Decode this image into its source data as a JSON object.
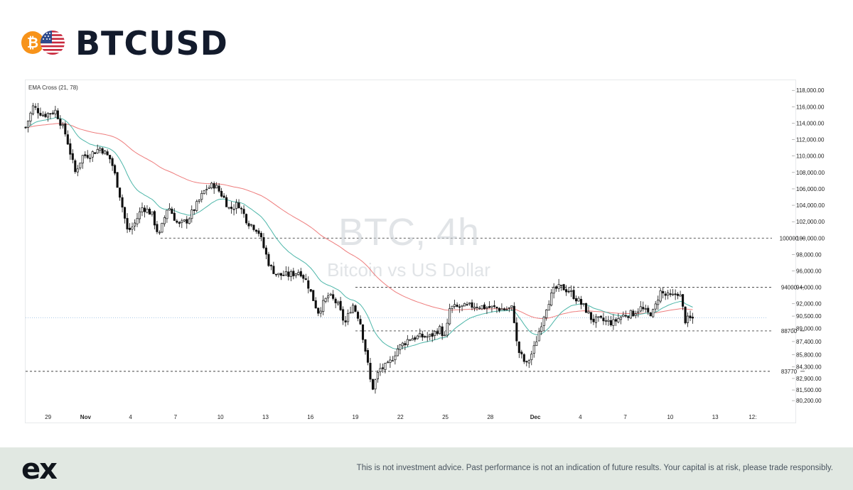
{
  "header": {
    "btc_symbol": "₿",
    "title": "BTCUSD"
  },
  "colors": {
    "bull": "#ffffff",
    "bear": "#0f0f0f",
    "wick": "#111111",
    "ema_fast": "#4db6a9",
    "ema_slow": "#ee7d7d",
    "current_price_line": "#8fb8e0",
    "btc_coin": "#f7931a",
    "footer_bg": "#e1e8e2"
  },
  "chart_data": {
    "type": "candlestick",
    "indicator_label": "EMA Cross (21, 78)",
    "watermark_title": "BTC, 4h",
    "watermark_subtitle": "Bitcoin vs US Dollar",
    "ylim": [
      79000,
      118800
    ],
    "y_ticks": [
      "118,000.00",
      "116,000.00",
      "114,000.00",
      "112,000.00",
      "110,000.00",
      "108,000.00",
      "106,000.00",
      "104,000.00",
      "102,000.00",
      "100,000.00",
      "98,000.00",
      "96,000.00",
      "94,000.00",
      "92,000.00",
      "90,500.00",
      "89,000.00",
      "87,400.00",
      "85,800.00",
      "84,300.00",
      "82,900.00",
      "81,500.00",
      "80,200.00"
    ],
    "x_ticks": [
      {
        "label": "29",
        "t": 1.5
      },
      {
        "label": "Nov",
        "t": 4
      },
      {
        "label": "4",
        "t": 7
      },
      {
        "label": "7",
        "t": 10
      },
      {
        "label": "10",
        "t": 13
      },
      {
        "label": "13",
        "t": 16
      },
      {
        "label": "16",
        "t": 19
      },
      {
        "label": "19",
        "t": 22
      },
      {
        "label": "22",
        "t": 25
      },
      {
        "label": "25",
        "t": 28
      },
      {
        "label": "28",
        "t": 31
      },
      {
        "label": "Dec",
        "t": 34
      },
      {
        "label": "4",
        "t": 37
      },
      {
        "label": "7",
        "t": 40
      },
      {
        "label": "10",
        "t": 43
      },
      {
        "label": "13",
        "t": 46
      },
      {
        "label": "12:",
        "t": 48.5
      }
    ],
    "x_range": [
      0,
      49.5
    ],
    "levels": [
      {
        "label": "100000",
        "value": 100000,
        "from": 9
      },
      {
        "label": "94000",
        "value": 94000,
        "from": 22
      },
      {
        "label": "88700",
        "value": 88700,
        "from": 22
      },
      {
        "label": "83770",
        "value": 83770,
        "from": 0
      }
    ],
    "current_price": 90300,
    "anchors": [
      [
        0,
        113500
      ],
      [
        0.5,
        116000
      ],
      [
        1.2,
        115000
      ],
      [
        2,
        115500
      ],
      [
        2.7,
        112500
      ],
      [
        3.3,
        108000
      ],
      [
        3.8,
        110000
      ],
      [
        4.3,
        110200
      ],
      [
        5,
        111000
      ],
      [
        5.7,
        109500
      ],
      [
        6.2,
        106000
      ],
      [
        6.8,
        100800
      ],
      [
        7.2,
        101500
      ],
      [
        7.8,
        103800
      ],
      [
        8.4,
        103000
      ],
      [
        8.9,
        100200
      ],
      [
        9.5,
        104000
      ],
      [
        10.2,
        101500
      ],
      [
        10.8,
        102200
      ],
      [
        11.4,
        104000
      ],
      [
        12,
        106000
      ],
      [
        12.6,
        106500
      ],
      [
        13.2,
        105000
      ],
      [
        13.6,
        103500
      ],
      [
        14.2,
        104200
      ],
      [
        14.8,
        102000
      ],
      [
        15.5,
        101000
      ],
      [
        16.3,
        96500
      ],
      [
        16.8,
        95500
      ],
      [
        17.6,
        95500
      ],
      [
        18.3,
        96000
      ],
      [
        18.8,
        94500
      ],
      [
        19.5,
        91000
      ],
      [
        20.2,
        93000
      ],
      [
        20.8,
        92000
      ],
      [
        21.3,
        89500
      ],
      [
        21.8,
        92000
      ],
      [
        22.3,
        90000
      ],
      [
        22.7,
        86000
      ],
      [
        23.1,
        81500
      ],
      [
        23.6,
        84000
      ],
      [
        24.2,
        84500
      ],
      [
        24.8,
        86500
      ],
      [
        25.6,
        87800
      ],
      [
        26.4,
        88000
      ],
      [
        27,
        88000
      ],
      [
        27.6,
        89000
      ],
      [
        28,
        87800
      ],
      [
        28.3,
        91500
      ],
      [
        29.2,
        91600
      ],
      [
        30,
        91800
      ],
      [
        30.6,
        91600
      ],
      [
        31.3,
        91500
      ],
      [
        32,
        91300
      ],
      [
        32.5,
        91500
      ],
      [
        32.8,
        86500
      ],
      [
        33.4,
        84500
      ],
      [
        33.9,
        86500
      ],
      [
        34.3,
        89000
      ],
      [
        34.8,
        92000
      ],
      [
        35.3,
        93800
      ],
      [
        35.8,
        94000
      ],
      [
        36.3,
        93500
      ],
      [
        36.8,
        92500
      ],
      [
        37.3,
        91500
      ],
      [
        37.8,
        90000
      ],
      [
        38.3,
        90000
      ],
      [
        38.8,
        89800
      ],
      [
        39.2,
        89700
      ],
      [
        39.6,
        90300
      ],
      [
        40,
        90700
      ],
      [
        40.5,
        90800
      ],
      [
        41,
        91500
      ],
      [
        41.5,
        90800
      ],
      [
        41.9,
        91000
      ],
      [
        42.3,
        93500
      ],
      [
        42.7,
        93000
      ],
      [
        43.1,
        92800
      ],
      [
        43.6,
        93500
      ],
      [
        44,
        90000
      ],
      [
        44.5,
        90200
      ]
    ]
  },
  "footer": {
    "logo": "ex",
    "disclaimer": "This is not investment advice. Past performance is not an indication of future results. Your capital is at risk, please trade responsibly."
  }
}
